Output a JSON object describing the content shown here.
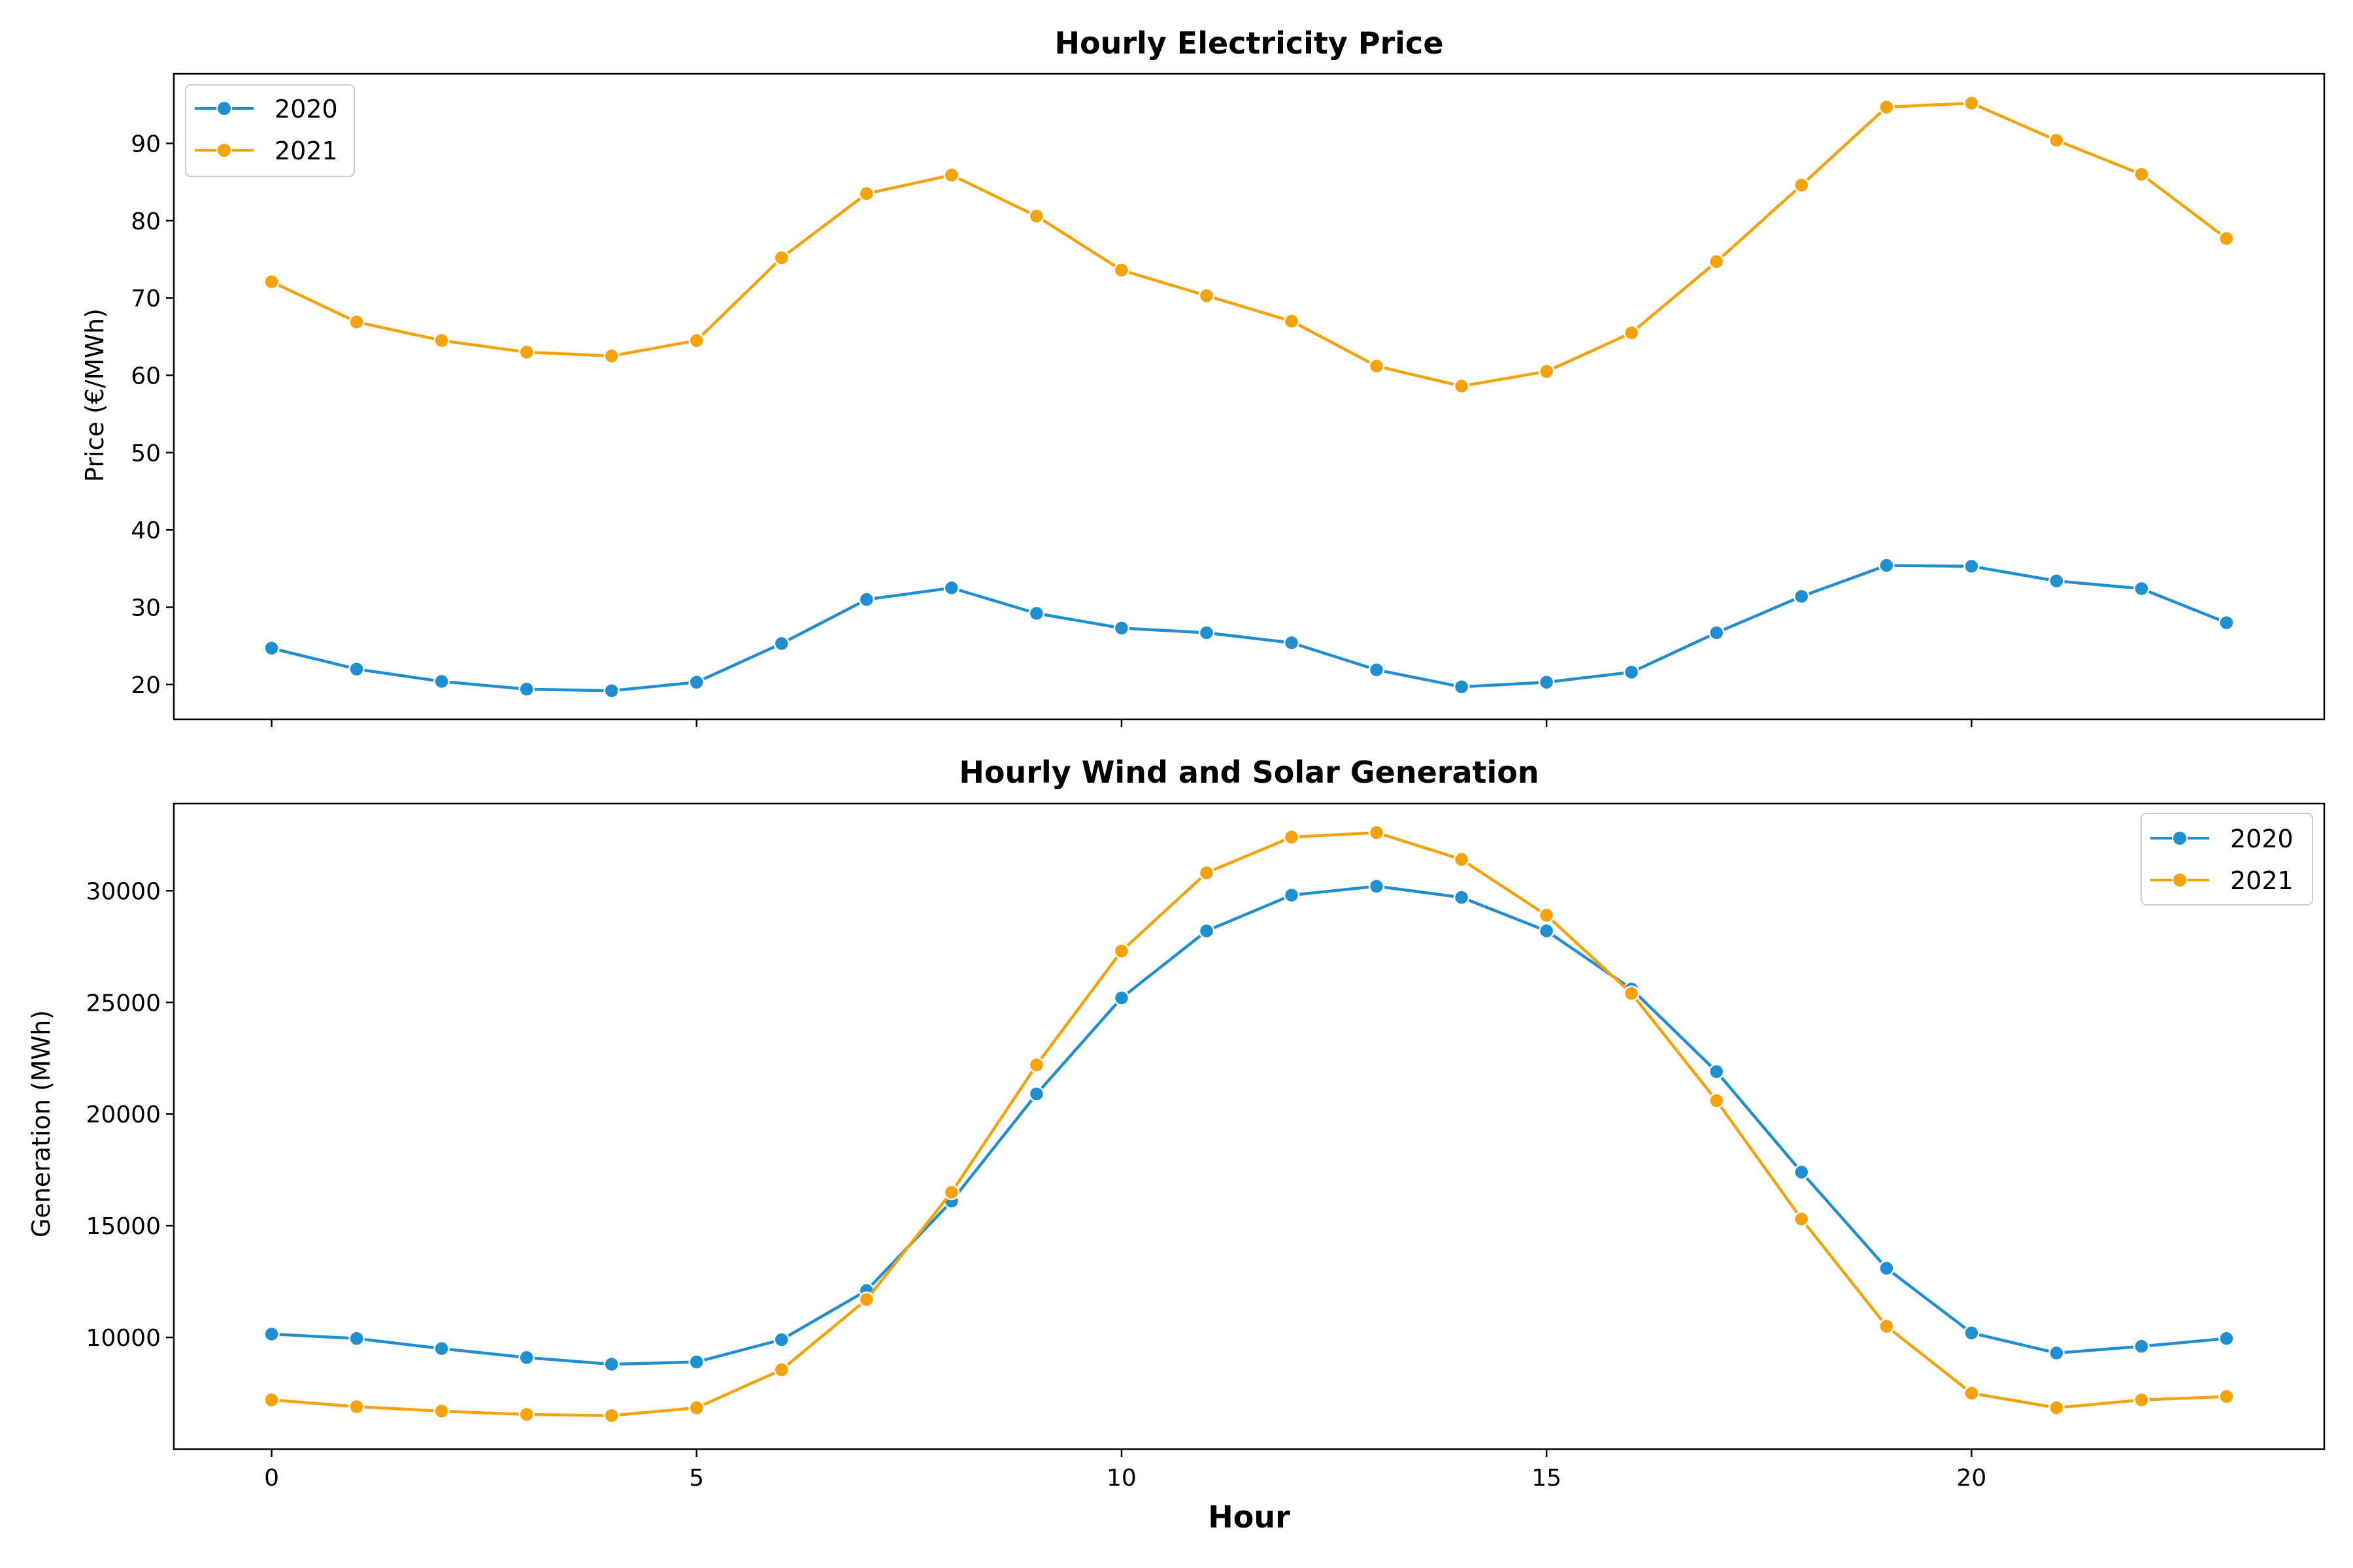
{
  "colors": {
    "series_2020": "#1f8fd1",
    "series_2021": "#f5a30a"
  },
  "chart_data": [
    {
      "type": "line",
      "title": "Hourly Electricity Price",
      "ylabel": "Price (€/MWh)",
      "xlabel": "",
      "x": [
        0,
        1,
        2,
        3,
        4,
        5,
        6,
        7,
        8,
        9,
        10,
        11,
        12,
        13,
        14,
        15,
        16,
        17,
        18,
        19,
        20,
        21,
        22,
        23
      ],
      "xticks": [
        0,
        5,
        10,
        15,
        20
      ],
      "xlim": [
        -1.15,
        24.15
      ],
      "ylim": [
        15.5,
        99
      ],
      "yticks": [
        20,
        30,
        40,
        50,
        60,
        70,
        80,
        90
      ],
      "legend_position": "upper-left",
      "grid": false,
      "series": [
        {
          "name": "2020",
          "color": "#1f8fd1",
          "values": [
            24.7,
            22.0,
            20.4,
            19.4,
            19.2,
            20.3,
            25.3,
            31.0,
            32.5,
            29.2,
            27.3,
            26.7,
            25.4,
            21.9,
            19.7,
            20.3,
            21.6,
            26.7,
            31.4,
            35.4,
            35.3,
            33.4,
            32.4,
            28.0
          ]
        },
        {
          "name": "2021",
          "color": "#f5a30a",
          "values": [
            72.1,
            66.9,
            64.5,
            63.0,
            62.5,
            64.5,
            75.2,
            83.5,
            85.9,
            80.6,
            73.6,
            70.3,
            67.0,
            61.2,
            58.6,
            60.5,
            65.5,
            74.7,
            84.6,
            94.7,
            95.2,
            90.4,
            86.0,
            77.7
          ]
        }
      ]
    },
    {
      "type": "line",
      "title": "Hourly Wind and Solar Generation",
      "ylabel": "Generation (MWh)",
      "xlabel": "Hour",
      "x": [
        0,
        1,
        2,
        3,
        4,
        5,
        6,
        7,
        8,
        9,
        10,
        11,
        12,
        13,
        14,
        15,
        16,
        17,
        18,
        19,
        20,
        21,
        22,
        23
      ],
      "xticks": [
        0,
        5,
        10,
        15,
        20
      ],
      "xlim": [
        -1.15,
        24.15
      ],
      "ylim": [
        5000,
        33900
      ],
      "yticks": [
        10000,
        15000,
        20000,
        25000,
        30000
      ],
      "legend_position": "upper-right",
      "grid": false,
      "series": [
        {
          "name": "2020",
          "color": "#1f8fd1",
          "values": [
            10150,
            9950,
            9500,
            9100,
            8800,
            8900,
            9900,
            12100,
            16100,
            20900,
            25200,
            28200,
            29800,
            30200,
            29700,
            28200,
            25600,
            21900,
            17400,
            13100,
            10200,
            9300,
            9600,
            9950
          ]
        },
        {
          "name": "2021",
          "color": "#f5a30a",
          "values": [
            7200,
            6900,
            6700,
            6550,
            6500,
            6850,
            8550,
            11700,
            16500,
            22200,
            27300,
            30800,
            32400,
            32600,
            31400,
            28900,
            25400,
            20600,
            15300,
            10500,
            7500,
            6850,
            7200,
            7350
          ]
        }
      ]
    }
  ]
}
